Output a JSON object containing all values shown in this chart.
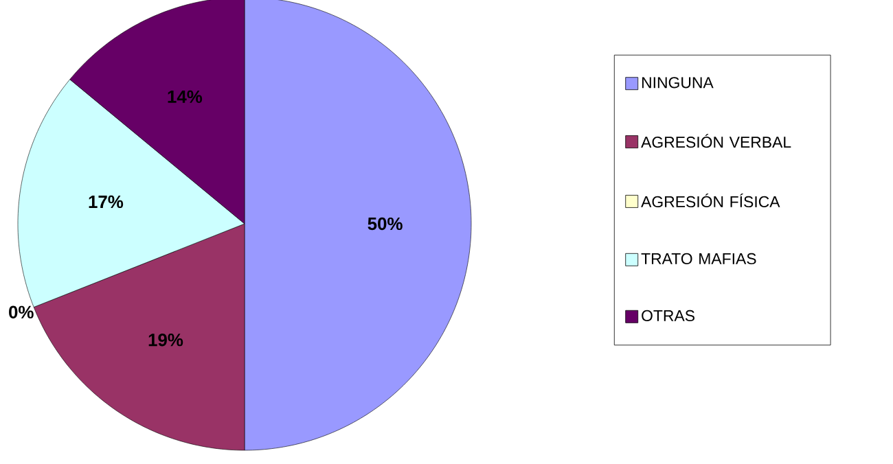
{
  "chart_data": {
    "type": "pie",
    "categories": [
      "NINGUNA",
      "AGRESIÓN VERBAL",
      "AGRESIÓN FÍSICA",
      "TRATO MAFIAS",
      "OTRAS"
    ],
    "values": [
      50,
      19,
      0,
      17,
      14
    ],
    "colors": [
      "#9999ff",
      "#993366",
      "#ffffcc",
      "#ccffff",
      "#660066"
    ],
    "value_labels": [
      "50%",
      "19%",
      "0%",
      "17%",
      "14%"
    ],
    "legend": "right"
  }
}
